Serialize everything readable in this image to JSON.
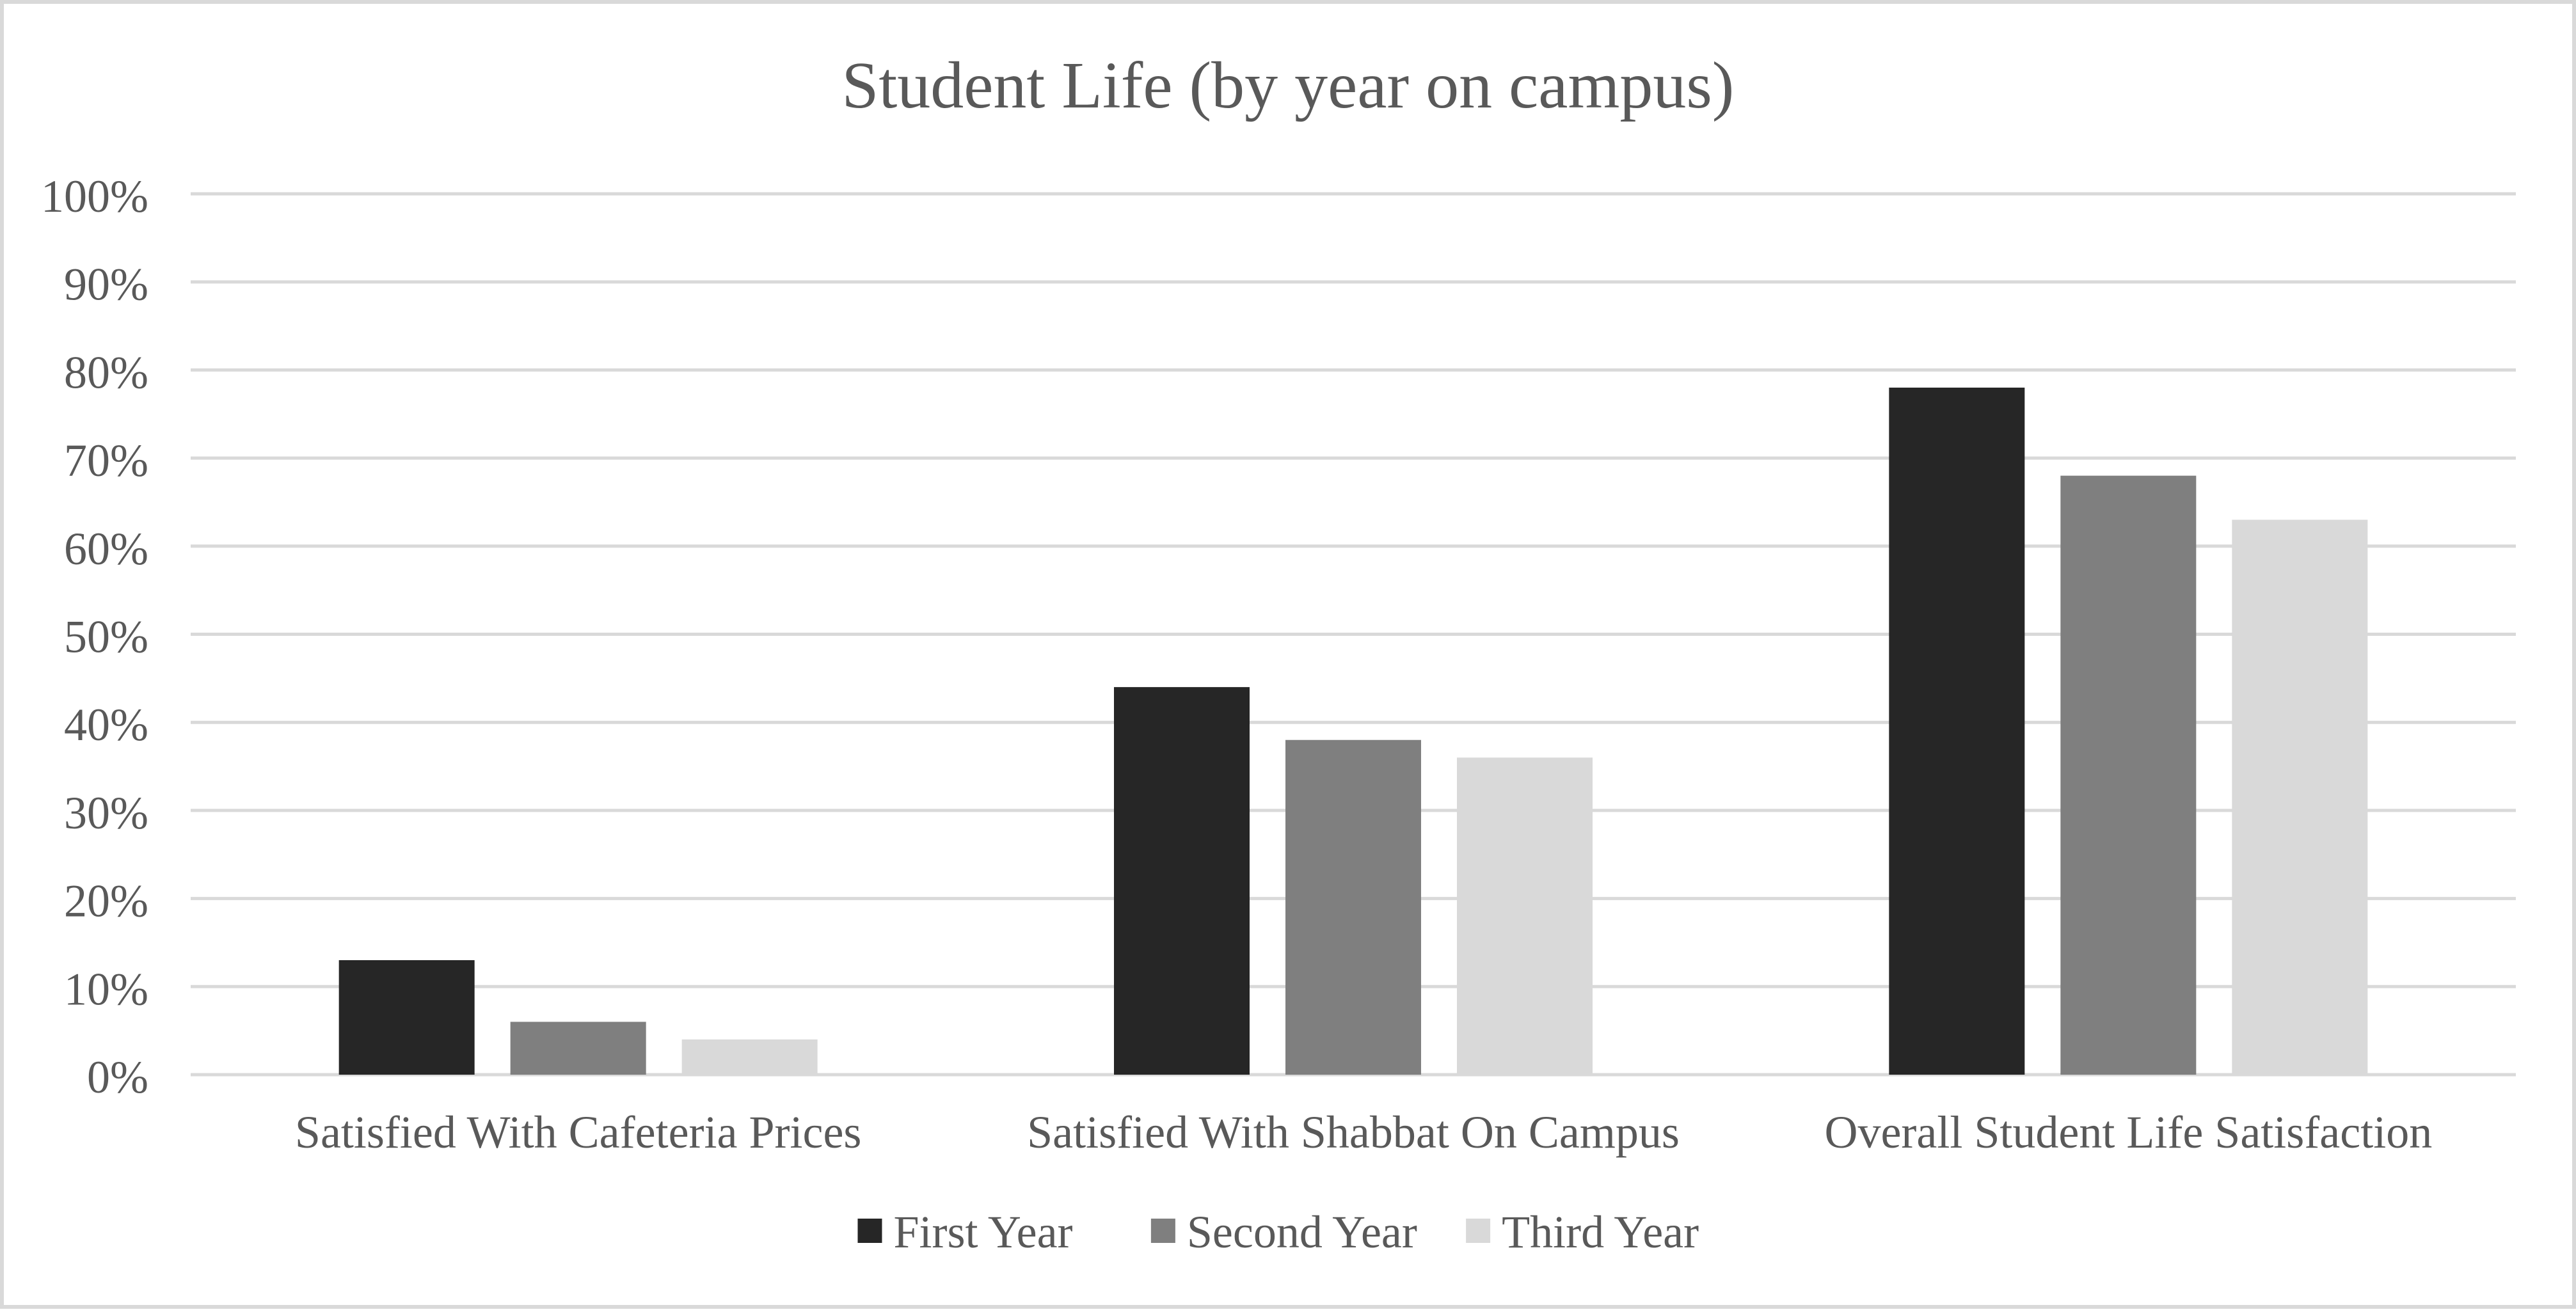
{
  "chart_data": {
    "type": "bar",
    "title": "Student Life (by year on campus)",
    "xlabel": "",
    "ylabel": "",
    "categories": [
      "Satisfied With Cafeteria Prices",
      "Satisfied With Shabbat On Campus",
      "Overall Student Life Satisfaction"
    ],
    "series": [
      {
        "name": "First Year",
        "values": [
          13,
          44,
          78
        ],
        "color": "#262626"
      },
      {
        "name": "Second Year",
        "values": [
          6,
          38,
          68
        ],
        "color": "#7f7f7f"
      },
      {
        "name": "Third Year",
        "values": [
          4,
          36,
          63
        ],
        "color": "#d9d9d9"
      }
    ],
    "ylim": [
      0,
      100
    ],
    "yticks": [
      0,
      10,
      20,
      30,
      40,
      50,
      60,
      70,
      80,
      90,
      100
    ],
    "ytick_labels": [
      "0%",
      "10%",
      "20%",
      "30%",
      "40%",
      "50%",
      "60%",
      "70%",
      "80%",
      "90%",
      "100%"
    ],
    "grid": true,
    "legend": "bottom-center",
    "colors": {
      "title": "#595959",
      "tick_labels": "#595959",
      "gridline": "#d9d9d9",
      "frame": "#d9d9d9"
    }
  }
}
